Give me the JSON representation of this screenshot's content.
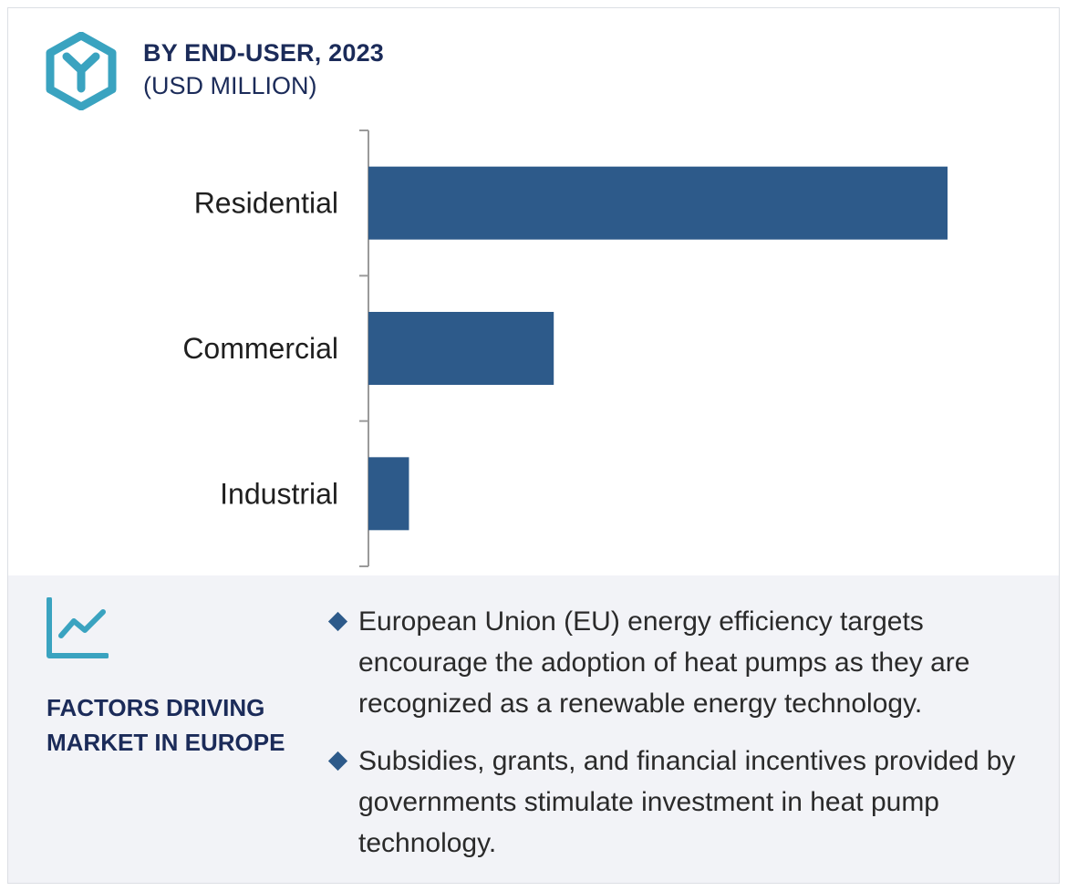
{
  "header": {
    "title": "BY END-USER, 2023",
    "subtitle": "(USD MILLION)"
  },
  "icons": {
    "logo": "hexagon-y-logo-icon",
    "factors": "trend-line-chart-icon",
    "bullet": "diamond-bullet-icon"
  },
  "colors": {
    "bar": "#2d5a8a",
    "accent": "#3aa3c0",
    "heading": "#1b2b59",
    "panel": "#f2f3f7"
  },
  "chart_data": {
    "type": "bar",
    "orientation": "horizontal",
    "categories": [
      "Residential",
      "Commercial",
      "Industrial"
    ],
    "values": [
      100,
      32,
      7
    ],
    "title": "BY END-USER, 2023",
    "subtitle": "(USD MILLION)",
    "xlabel": "",
    "ylabel": "",
    "xlim": [
      0,
      100
    ],
    "grid": false,
    "value_labels": false
  },
  "factors": {
    "heading": "FACTORS DRIVING MARKET IN EUROPE",
    "bullets": [
      "European Union (EU) energy efficiency targets encourage the adoption of heat pumps as they are recognized as a renewable energy technology.",
      "Subsidies, grants, and financial incentives provided by governments stimulate investment in heat pump technology."
    ]
  }
}
